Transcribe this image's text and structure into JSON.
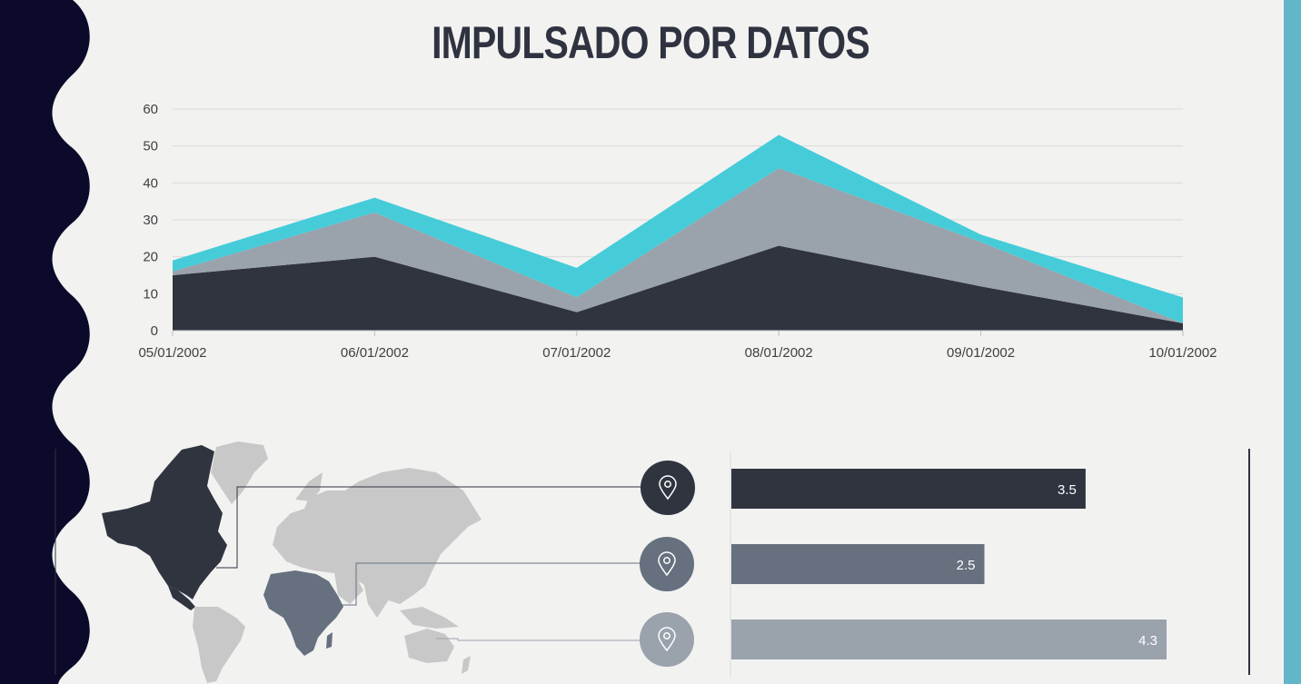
{
  "title": "IMPULSADO POR DATOS",
  "chart_data": [
    {
      "type": "area",
      "stacked": true,
      "x": [
        "05/01/2002",
        "06/01/2002",
        "07/01/2002",
        "08/01/2002",
        "09/01/2002",
        "10/01/2002"
      ],
      "ylim": [
        0,
        60
      ],
      "yticks": [
        0,
        10,
        20,
        30,
        40,
        50,
        60
      ],
      "grid": true,
      "series": [
        {
          "values": [
            15,
            20,
            5,
            23,
            12,
            2
          ],
          "color": "#30343f"
        },
        {
          "values": [
            1,
            12,
            4,
            21,
            12,
            0
          ],
          "color": "#9aa2ac"
        },
        {
          "values": [
            3,
            4,
            8,
            9,
            2,
            7
          ],
          "color": "#45ccd8"
        }
      ]
    },
    {
      "type": "bar",
      "orientation": "horizontal",
      "values": [
        3.5,
        2.5,
        4.3
      ],
      "labels": [
        "3.5",
        "2.5",
        "4.3"
      ],
      "xlim": [
        0,
        5
      ],
      "colors": [
        "#30343f",
        "#66707e",
        "#9aa2ac"
      ]
    }
  ],
  "map": {
    "highlighted_regions": [
      "north-america",
      "africa"
    ],
    "pin_icon": "location-pin-icon",
    "pin_colors": [
      "#30343f",
      "#66707e",
      "#9aa2ac"
    ]
  },
  "colors": {
    "dark_band": "#0b0a2b",
    "accent_strip": "#63b5c9",
    "background": "#f2f2f1"
  }
}
